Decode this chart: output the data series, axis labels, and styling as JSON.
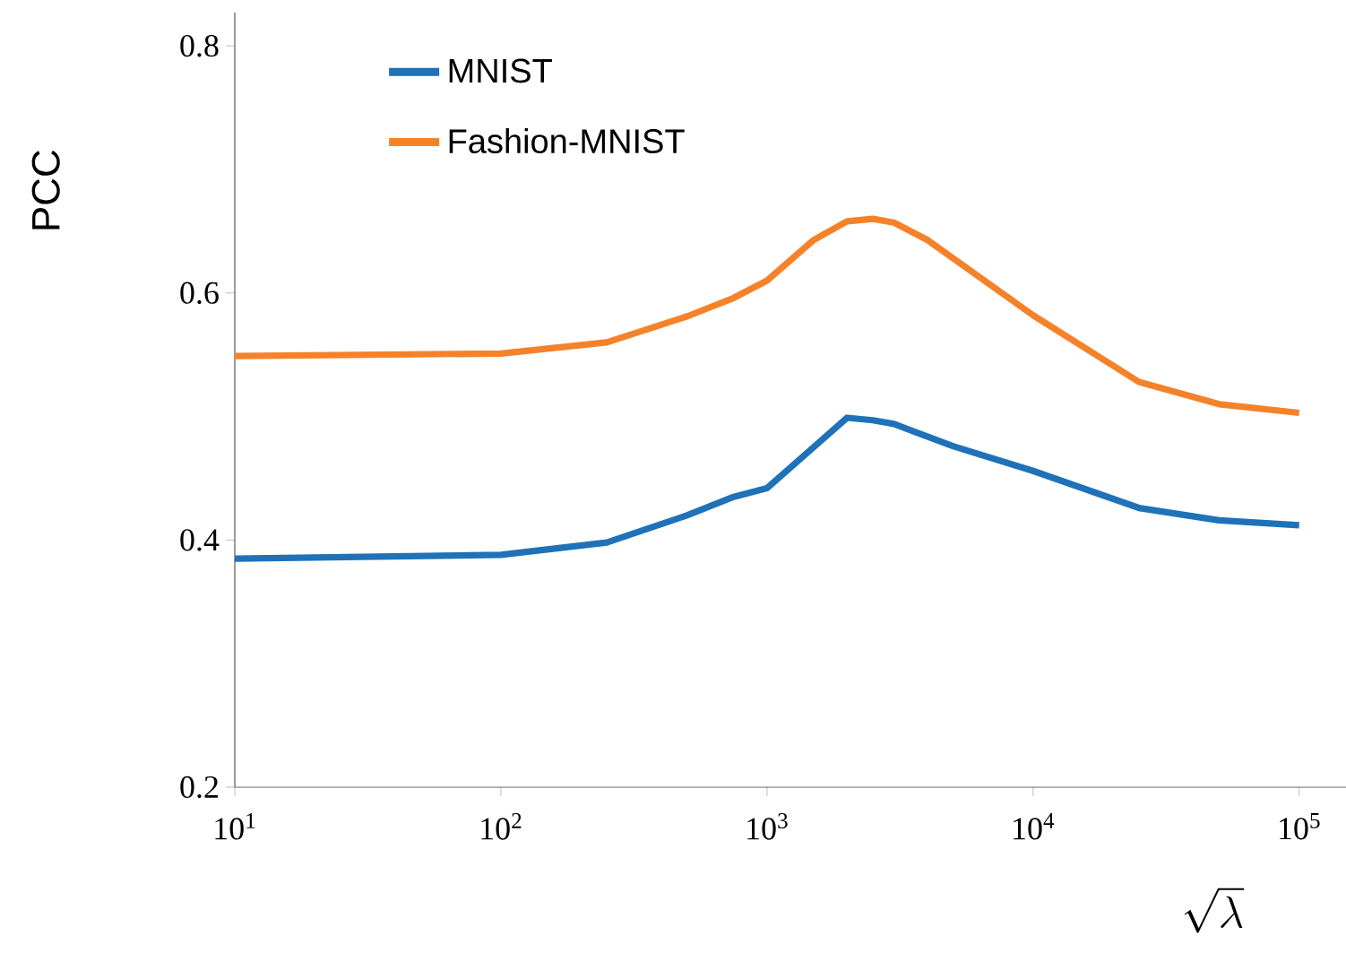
{
  "chart_data": {
    "type": "line",
    "xlabel": "\\sqrt{\\lambda}",
    "ylabel": "PCC",
    "log": "x",
    "legend": "top left",
    "xlim": [
      10,
      150000
    ],
    "ylim": [
      0.2,
      0.827
    ],
    "xticks": [
      {
        "value": 10,
        "label": "10$^{1}$"
      },
      {
        "value": 100,
        "label": "10$^{2}$"
      },
      {
        "value": 1000,
        "label": "10$^{3}$"
      },
      {
        "value": 10000,
        "label": "10$^{4}$"
      },
      {
        "value": 100000,
        "label": "10$^{5}$"
      }
    ],
    "yticks": [
      0.2,
      0.4,
      0.6,
      0.8
    ],
    "series": [
      {
        "name": "MNIST",
        "color": "#1f72b8",
        "x": [
          10,
          100,
          250,
          500,
          750,
          1000,
          2000,
          2500,
          3000,
          5000,
          10000,
          25000,
          50000,
          100000
        ],
        "values": [
          0.385,
          0.388,
          0.398,
          0.42,
          0.435,
          0.442,
          0.499,
          0.497,
          0.494,
          0.476,
          0.456,
          0.426,
          0.416,
          0.412
        ]
      },
      {
        "name": "Fashion-MNIST",
        "color": "#f5822a",
        "x": [
          10,
          100,
          250,
          500,
          750,
          1000,
          1500,
          2000,
          2500,
          3000,
          4000,
          10000,
          25000,
          50000,
          100000
        ],
        "values": [
          0.549,
          0.551,
          0.56,
          0.581,
          0.596,
          0.61,
          0.643,
          0.658,
          0.66,
          0.657,
          0.643,
          0.582,
          0.528,
          0.51,
          0.503
        ]
      }
    ]
  }
}
